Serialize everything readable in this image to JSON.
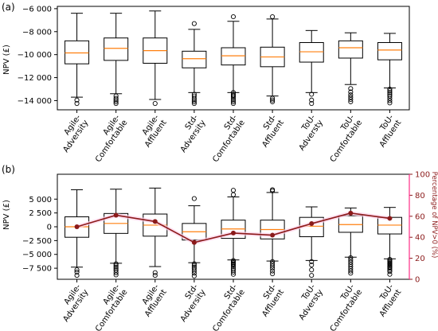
{
  "colors": {
    "box": "#000000",
    "median": "#ff7f0e",
    "line": "#8b1a1a",
    "secondary_axis": "#8b1a1a",
    "spine_pink": "#ff2d87"
  },
  "chart_data": [
    {
      "panel_label": "(a)",
      "type": "boxplot",
      "ylabel": "NPV (£)",
      "ylim": [
        -14800,
        -5800
      ],
      "yticks": [
        -14000,
        -12000,
        -10000,
        -8000,
        -6000
      ],
      "ytick_labels": [
        "−14 000",
        "−12 000",
        "−10 000",
        "−8 000",
        "−6 000"
      ],
      "categories": [
        "Agile-\nAdversity",
        "Agile-\nComfortable",
        "Agile-\nAffluent",
        "Std-\nAdversity",
        "Std-\nComfortable",
        "Std-\nAffluent",
        "ToU-\nAdversty",
        "ToU-\nComfortable",
        "ToU-\nAffluent"
      ],
      "boxes": [
        {
          "whislo": -13700,
          "q1": -10800,
          "med": -9850,
          "q3": -8800,
          "whishi": -6400,
          "fliers": [
            -13950,
            -14250
          ]
        },
        {
          "whislo": -13400,
          "q1": -10500,
          "med": -9450,
          "q3": -8550,
          "whishi": -6400,
          "fliers": [
            -13600,
            -13800,
            -13950,
            -14100,
            -14250
          ]
        },
        {
          "whislo": -13900,
          "q1": -10750,
          "med": -9650,
          "q3": -8550,
          "whishi": -6200,
          "fliers": [
            -14250
          ]
        },
        {
          "whislo": -13300,
          "q1": -11150,
          "med": -10350,
          "q3": -9700,
          "whishi": -7800,
          "fliers": [
            -7300,
            -13450,
            -13600,
            -13800,
            -13950,
            -14100,
            -14250
          ]
        },
        {
          "whislo": -13300,
          "q1": -10900,
          "med": -10100,
          "q3": -9400,
          "whishi": -7100,
          "fliers": [
            -6700,
            -13300,
            -13450,
            -13550,
            -13650,
            -13800,
            -13950,
            -14100,
            -14250
          ]
        },
        {
          "whislo": -13600,
          "q1": -11050,
          "med": -10200,
          "q3": -9350,
          "whishi": -6900,
          "fliers": [
            -6700,
            -13800,
            -13950,
            -14100
          ]
        },
        {
          "whislo": -13300,
          "q1": -10650,
          "med": -9750,
          "q3": -8950,
          "whishi": -7900,
          "fliers": [
            -13450,
            -13950,
            -14250
          ]
        },
        {
          "whislo": -12600,
          "q1": -10300,
          "med": -9400,
          "q3": -8800,
          "whishi": -8100,
          "fliers": [
            -12950,
            -13250,
            -13500,
            -13700,
            -13900,
            -14100
          ]
        },
        {
          "whislo": -12900,
          "q1": -10450,
          "med": -9600,
          "q3": -8950,
          "whishi": -8150,
          "fliers": [
            -13000,
            -13150,
            -13300,
            -13450,
            -13600,
            -13800,
            -14000,
            -14200
          ]
        }
      ]
    },
    {
      "panel_label": "(b)",
      "type": "boxplot+line",
      "ylabel": "NPV (£)",
      "ylabel_right": "Percentage of NPV>0 (%)",
      "ylim": [
        -9500,
        9500
      ],
      "yticks": [
        -7500,
        -5000,
        -2500,
        0,
        2500,
        5000
      ],
      "ytick_labels": [
        "−7 500",
        "−5 000",
        "−2 500",
        "0",
        "2 500",
        "5 000"
      ],
      "ylim_right": [
        0,
        100
      ],
      "yticks_right": [
        0,
        20,
        40,
        60,
        80,
        100
      ],
      "categories": [
        "Agile-\nAdversity",
        "Agile-\nComfortable",
        "Agile-\nAffluent",
        "Std-\nAdversity",
        "Std-\nComfortable",
        "Std-\nAffluent",
        "ToU-\nAdversty",
        "ToU-\nComfortable",
        "ToU-\nAffluent"
      ],
      "boxes": [
        {
          "whislo": -7300,
          "q1": -1900,
          "med": 0,
          "q3": 1800,
          "whishi": 6700,
          "fliers": [
            -7800,
            -8200,
            -8800
          ]
        },
        {
          "whislo": -6600,
          "q1": -1200,
          "med": 600,
          "q3": 2400,
          "whishi": 6800,
          "fliers": [
            -6700,
            -7000,
            -7300,
            -7600,
            -7900,
            -8300,
            -8700
          ]
        },
        {
          "whislo": -7200,
          "q1": -1700,
          "med": 300,
          "q3": 2300,
          "whishi": 7000,
          "fliers": [
            -8300,
            -8800
          ]
        },
        {
          "whislo": -6500,
          "q1": -2400,
          "med": -900,
          "q3": 600,
          "whishi": 3800,
          "fliers": [
            5100,
            -6700,
            -7000,
            -7300,
            -7600,
            -8000,
            -8400,
            -8900
          ]
        },
        {
          "whislo": -6000,
          "q1": -2100,
          "med": -400,
          "q3": 1200,
          "whishi": 5400,
          "fliers": [
            5800,
            6600,
            -6100,
            -6300,
            -6500,
            -6700,
            -6900,
            -7200,
            -7500,
            -7800,
            -8200,
            -8600
          ]
        },
        {
          "whislo": -6200,
          "q1": -2200,
          "med": -500,
          "q3": 1200,
          "whishi": 6200,
          "fliers": [
            6500,
            6700,
            -6300,
            -6700,
            -7100,
            -7500,
            -8000,
            -8500
          ]
        },
        {
          "whislo": -6100,
          "q1": -1800,
          "med": 100,
          "q3": 1700,
          "whishi": 3600,
          "fliers": [
            -6300,
            -6900,
            -7800,
            -8800
          ]
        },
        {
          "whislo": -5500,
          "q1": -1000,
          "med": 400,
          "q3": 2000,
          "whishi": 3400,
          "fliers": [
            -5600,
            -6000,
            -6400,
            -6800,
            -7200,
            -7600,
            -8000,
            -8400
          ]
        },
        {
          "whislo": -5800,
          "q1": -1300,
          "med": 300,
          "q3": 1700,
          "whishi": 3500,
          "fliers": [
            -5900,
            -6100,
            -6300,
            -6500,
            -6700,
            -6900,
            -7100,
            -7300,
            -7500,
            -7800,
            -8100,
            -8600
          ]
        }
      ],
      "line_values": [
        50,
        61,
        55,
        35,
        44,
        42,
        53,
        63,
        58
      ]
    }
  ]
}
